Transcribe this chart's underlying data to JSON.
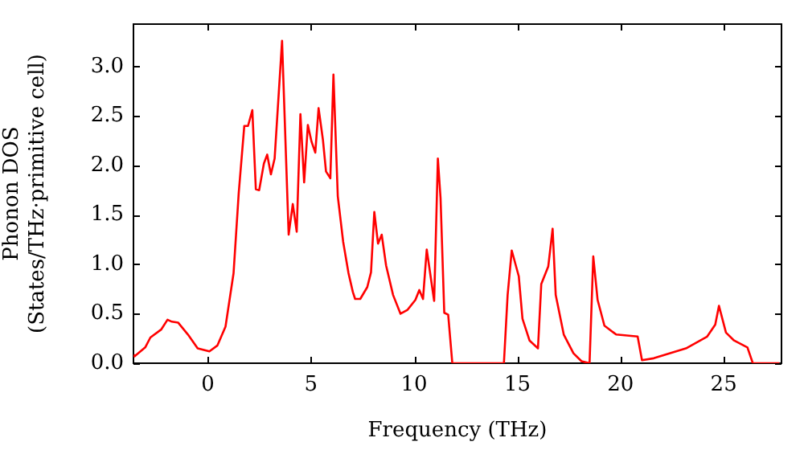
{
  "chart_data": {
    "type": "line",
    "xlabel": "Frequency (THz)",
    "ylabel": "Phonon DOS\n(States/THz·primitive cell)",
    "xlim": [
      -3.6,
      27.8
    ],
    "xticks": [
      0,
      5,
      10,
      15,
      20,
      25
    ],
    "ylim": [
      0,
      3.43
    ],
    "yticks": [
      {
        "value": 0,
        "label": "0.0"
      },
      {
        "value": 0.5,
        "label": "0.5"
      },
      {
        "value": 1,
        "label": "1.0"
      },
      {
        "value": 1.5,
        "label": "1.5"
      },
      {
        "value": 2,
        "label": "2.0"
      },
      {
        "value": 2.5,
        "label": "2.5"
      },
      {
        "value": 3,
        "label": "3.0"
      }
    ],
    "grid": false,
    "legend": false,
    "marker": "none",
    "line_style": "solid",
    "series": [
      {
        "color": "#ff0000",
        "x": [
          -3.6,
          -3.55,
          -3.03,
          -2.78,
          -2.26,
          -1.95,
          -1.74,
          -1.43,
          -0.96,
          -0.49,
          0.08,
          0.47,
          0.86,
          1.25,
          1.5,
          1.77,
          1.95,
          2.16,
          2.33,
          2.49,
          2.72,
          2.88,
          3.06,
          3.24,
          3.6,
          3.92,
          4.12,
          4.31,
          4.49,
          4.67,
          4.85,
          5.03,
          5.21,
          5.37,
          5.58,
          5.73,
          5.94,
          6.09,
          6.3,
          6.56,
          6.82,
          7.03,
          7.14,
          7.39,
          7.73,
          7.91,
          8.07,
          8.25,
          8.43,
          8.64,
          8.98,
          9.34,
          9.68,
          10.06,
          10.25,
          10.43,
          10.61,
          10.97,
          11.15,
          11.28,
          11.46,
          11.65,
          11.85,
          14.35,
          14.53,
          14.73,
          15.07,
          15.25,
          15.59,
          16.0,
          16.16,
          16.5,
          16.71,
          16.86,
          17.25,
          17.72,
          18.11,
          18.5,
          18.68,
          18.89,
          19.22,
          19.79,
          20.83,
          21.04,
          21.61,
          23.17,
          24.2,
          24.59,
          24.77,
          25.11,
          25.5,
          26.15,
          26.41,
          27.7
        ],
        "values": [
          0.08,
          0.07,
          0.16,
          0.26,
          0.34,
          0.44,
          0.42,
          0.41,
          0.29,
          0.15,
          0.12,
          0.18,
          0.37,
          0.91,
          1.72,
          2.4,
          2.4,
          2.56,
          1.76,
          1.75,
          2.02,
          2.11,
          1.91,
          2.07,
          3.26,
          1.3,
          1.61,
          1.33,
          2.52,
          1.83,
          2.41,
          2.24,
          2.13,
          2.58,
          2.26,
          1.94,
          1.87,
          2.92,
          1.69,
          1.23,
          0.91,
          0.72,
          0.65,
          0.65,
          0.77,
          0.92,
          1.53,
          1.21,
          1.3,
          0.99,
          0.69,
          0.5,
          0.54,
          0.64,
          0.74,
          0.65,
          1.15,
          0.63,
          2.07,
          1.67,
          0.51,
          0.49,
          0,
          0,
          0.69,
          1.14,
          0.88,
          0.45,
          0.23,
          0.15,
          0.8,
          0.98,
          1.36,
          0.69,
          0.29,
          0.1,
          0.02,
          0,
          1.08,
          0.64,
          0.38,
          0.29,
          0.27,
          0.03,
          0.05,
          0.15,
          0.27,
          0.39,
          0.58,
          0.31,
          0.23,
          0.16,
          0,
          0
        ]
      }
    ]
  }
}
